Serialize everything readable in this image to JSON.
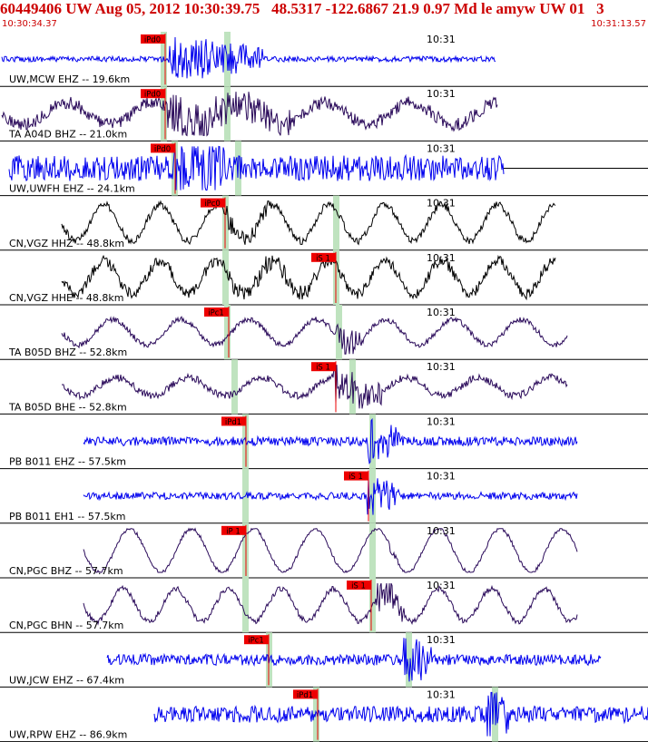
{
  "header": {
    "title": "60449406 UW Aug 05, 2012 10:30:39.75   48.5317 -122.6867 21.9 0.97 Md le amyw UW 01   3",
    "start_time": "10:30:34.37",
    "end_time": "10:31:13.57"
  },
  "time_marker_label": "10:31",
  "colors": {
    "header": "#cc0000",
    "blue_trace": "#0000ee",
    "black_trace": "#000000",
    "purple_trace": "#2a0a5a",
    "pick": "#ee0000",
    "window": "#bfe3bf"
  },
  "traces": [
    {
      "label": "UW,MCW EHZ -- 19.6km",
      "pick": "iPd0",
      "color": "blue"
    },
    {
      "label": "TA A04D BHZ -- 21.0km",
      "pick": "iPd0",
      "color": "purple"
    },
    {
      "label": "UW,UWFH EHZ -- 24.1km",
      "pick": "iPd0",
      "color": "blue"
    },
    {
      "label": "CN,VGZ HHZ -- 48.8km",
      "pick": "iPc0",
      "color": "black"
    },
    {
      "label": "CN,VGZ HHE -- 48.8km",
      "pick": "iS 1",
      "color": "black"
    },
    {
      "label": "TA B05D BHZ -- 52.8km",
      "pick": "iPc1",
      "color": "purple"
    },
    {
      "label": "TA B05D BHE -- 52.8km",
      "pick": "iS 1",
      "color": "purple"
    },
    {
      "label": "PB B011 EHZ -- 57.5km",
      "pick": "iPd1",
      "color": "blue"
    },
    {
      "label": "PB B011 EH1 -- 57.5km",
      "pick": "iS 1",
      "color": "blue"
    },
    {
      "label": "CN,PGC BHZ -- 57.7km",
      "pick": "iP 1",
      "color": "purple"
    },
    {
      "label": "CN,PGC BHN -- 57.7km",
      "pick": "iS 1",
      "color": "purple"
    },
    {
      "label": "UW,JCW EHZ -- 67.4km",
      "pick": "iPc1",
      "color": "blue"
    },
    {
      "label": "UW,RPW EHZ -- 86.9km",
      "pick": "iPd1",
      "color": "blue"
    }
  ]
}
